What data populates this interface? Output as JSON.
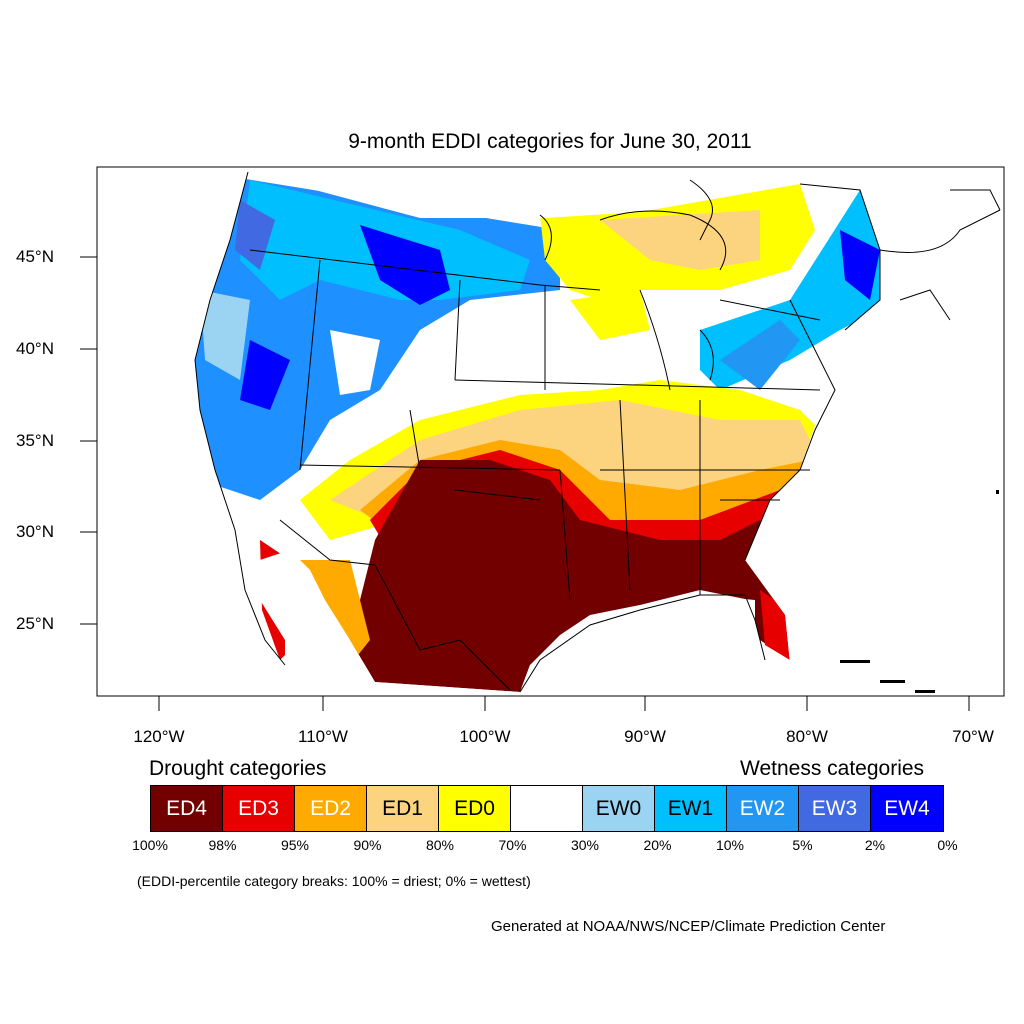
{
  "title": "9-month EDDI categories for June 30, 2011",
  "lat_labels": [
    "45°N",
    "40°N",
    "35°N",
    "30°N",
    "25°N"
  ],
  "lon_labels": [
    "120°W",
    "110°W",
    "100°W",
    "90°W",
    "80°W",
    "70°W"
  ],
  "legend": {
    "drought_heading": "Drought categories",
    "wetness_heading": "Wetness categories",
    "categories": [
      {
        "label": "ED4",
        "color": "#730000",
        "text_color": "#ffffff"
      },
      {
        "label": "ED3",
        "color": "#e60000",
        "text_color": "#ffffff"
      },
      {
        "label": "ED2",
        "color": "#ffaa00",
        "text_color": "#ffffff"
      },
      {
        "label": "ED1",
        "color": "#fcd37f",
        "text_color": "#000000"
      },
      {
        "label": "ED0",
        "color": "#ffff00",
        "text_color": "#000000"
      },
      {
        "label": "",
        "color": "#ffffff",
        "text_color": "#000000"
      },
      {
        "label": "EW0",
        "color": "#9bd3f2",
        "text_color": "#000000"
      },
      {
        "label": "EW1",
        "color": "#00bfff",
        "text_color": "#000000"
      },
      {
        "label": "EW2",
        "color": "#2196f3",
        "text_color": "#ffffff"
      },
      {
        "label": "EW3",
        "color": "#4169e1",
        "text_color": "#ffffff"
      },
      {
        "label": "EW4",
        "color": "#0000ff",
        "text_color": "#ffffff"
      }
    ],
    "breaks": [
      "100%",
      "98%",
      "95%",
      "90%",
      "80%",
      "70%",
      "30%",
      "20%",
      "10%",
      "5%",
      "2%",
      "0%"
    ]
  },
  "note": "(EDDI-percentile category breaks: 100% = driest; 0% = wettest)",
  "credit": "Generated at NOAA/NWS/NCEP/Climate Prediction Center"
}
